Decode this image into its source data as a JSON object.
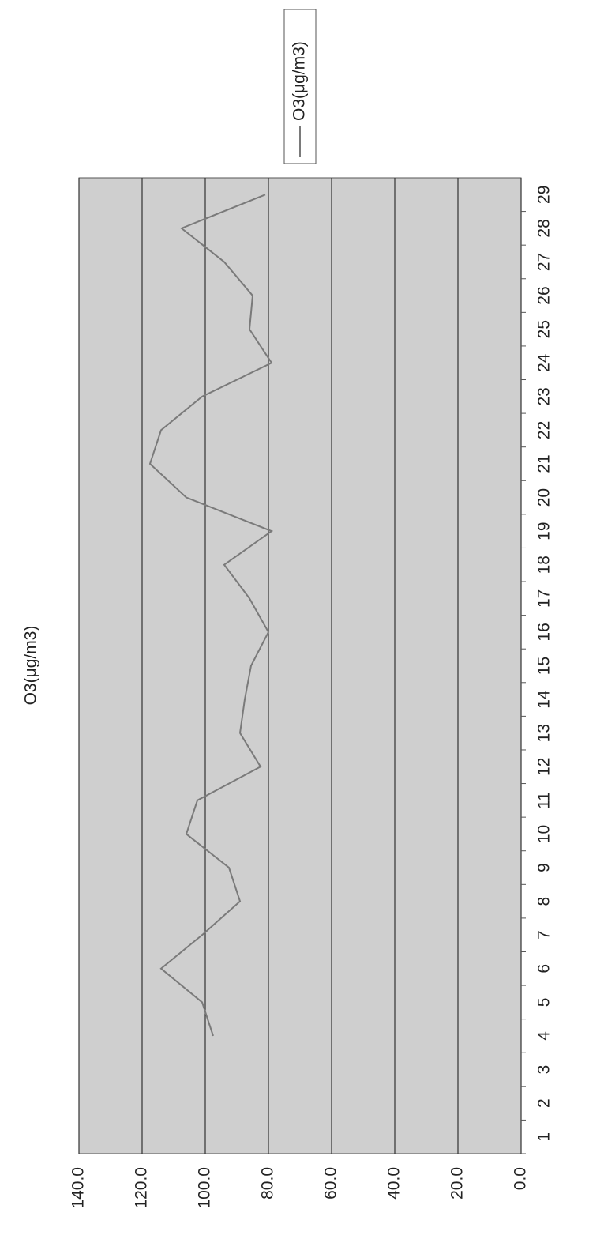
{
  "chart_data": {
    "type": "line",
    "title": "O3(μg/m3)",
    "categories": [
      "1",
      "2",
      "3",
      "4",
      "5",
      "6",
      "7",
      "8",
      "9",
      "10",
      "11",
      "12",
      "13",
      "14",
      "15",
      "16",
      "17",
      "18",
      "19",
      "20",
      "21",
      "22",
      "23",
      "24",
      "25",
      "26",
      "27",
      "28",
      "29"
    ],
    "series": [
      {
        "name": "O3(μg/m3)",
        "color": "#7a7a7a",
        "values": [
          null,
          null,
          null,
          97.5,
          101,
          114,
          101,
          89,
          92.5,
          106,
          102.5,
          82.5,
          89,
          87.5,
          85.5,
          80,
          86,
          94,
          79,
          106,
          117.5,
          114,
          101,
          79,
          86,
          85,
          94,
          107.5,
          81
        ]
      }
    ],
    "ylim": [
      0,
      140
    ],
    "yticks": [
      {
        "value": 0,
        "label": "0.0"
      },
      {
        "value": 20,
        "label": "20.0"
      },
      {
        "value": 40,
        "label": "40.0"
      },
      {
        "value": 60,
        "label": "60.0"
      },
      {
        "value": 80,
        "label": "80.0"
      },
      {
        "value": 100,
        "label": "100.0"
      },
      {
        "value": 120,
        "label": "120.0"
      },
      {
        "value": 140,
        "label": "140.0"
      }
    ],
    "grid": true,
    "legend": "right",
    "plot_background": "#cfcfcf"
  }
}
